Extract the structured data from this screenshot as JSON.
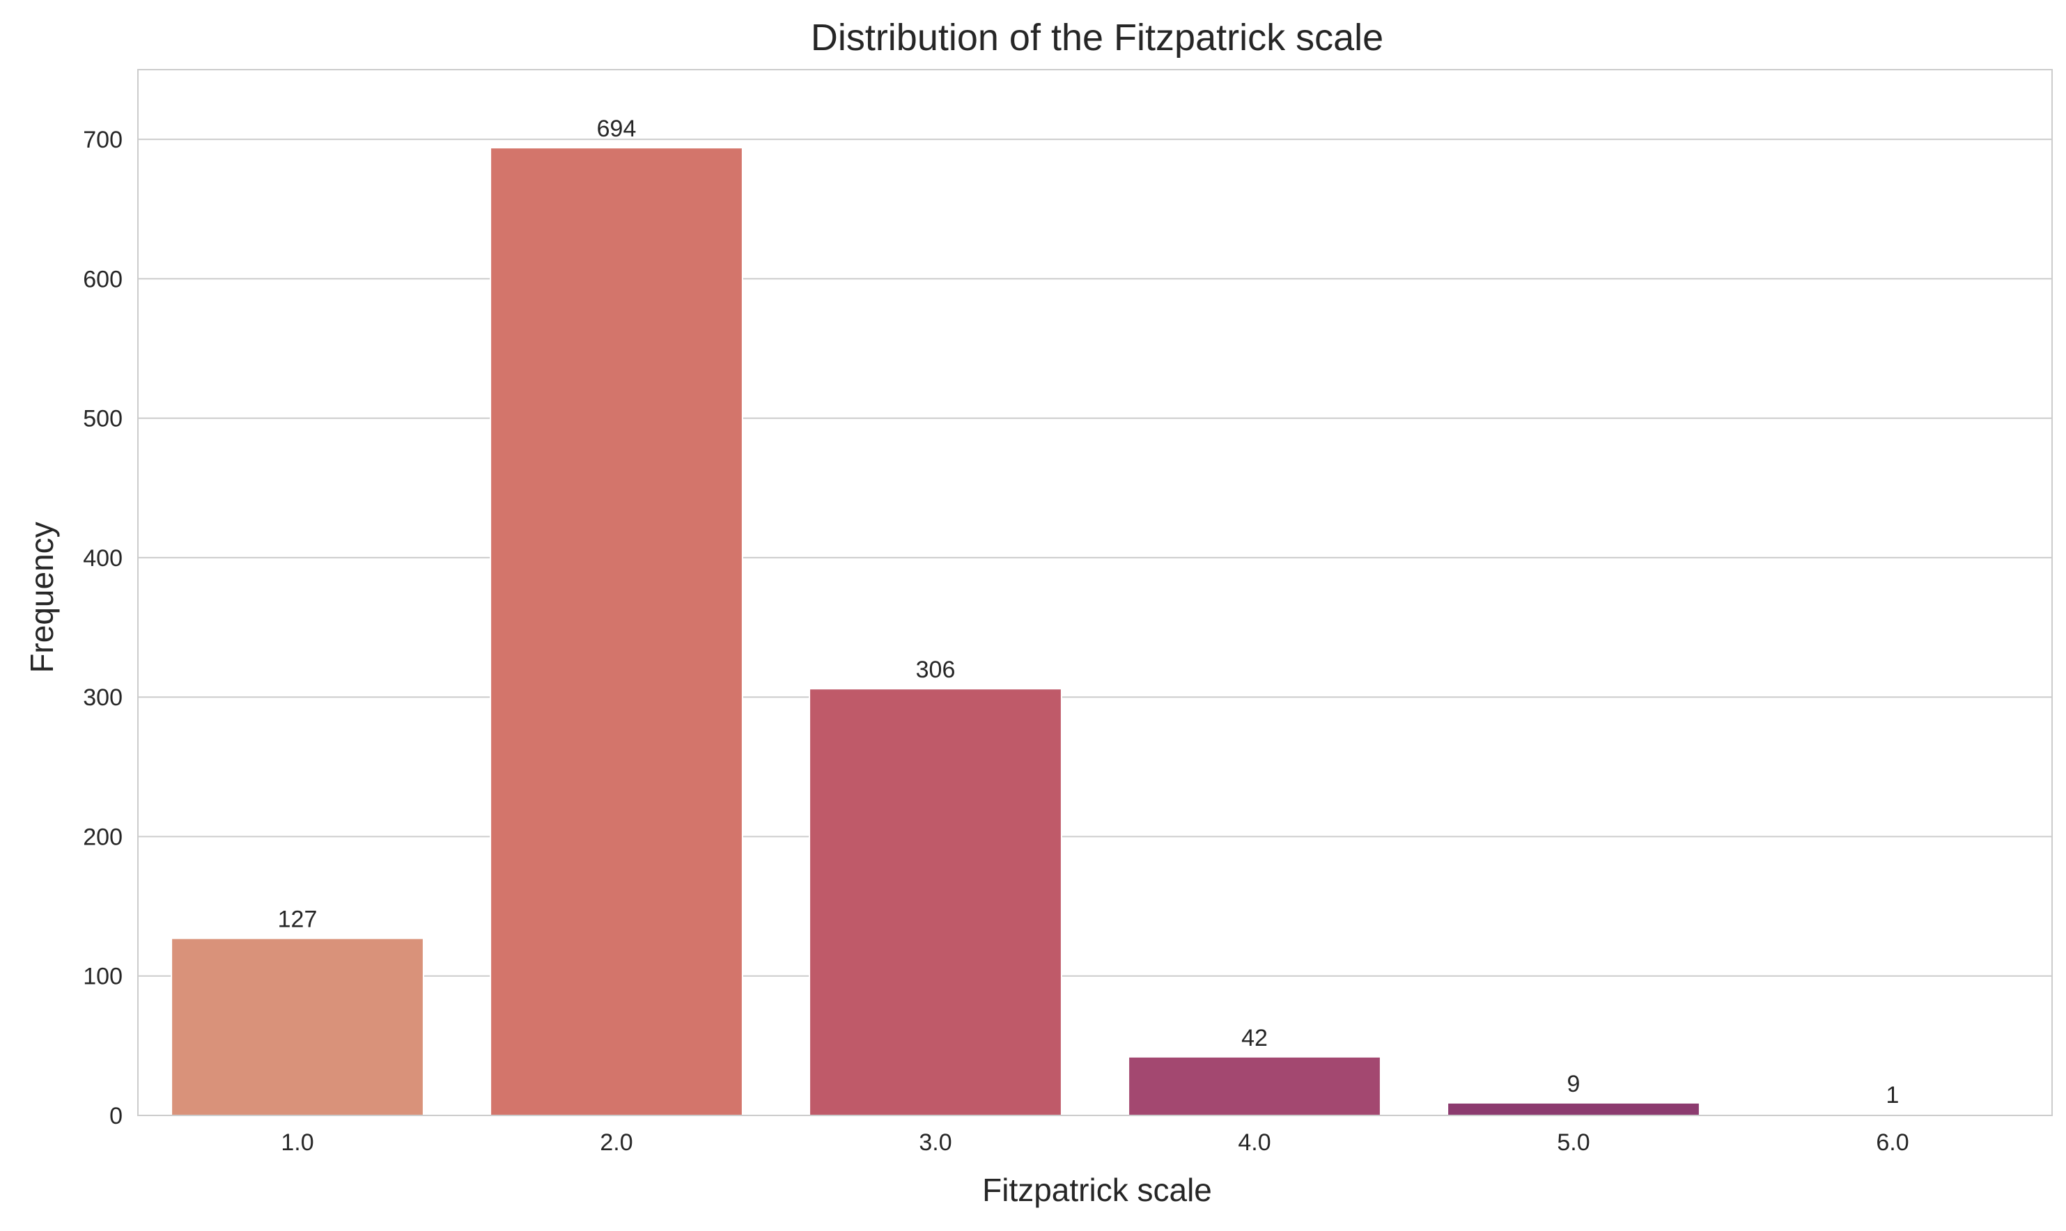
{
  "chart_data": {
    "type": "bar",
    "title": "Distribution of the Fitzpatrick scale",
    "xlabel": "Fitzpatrick scale",
    "ylabel": "Frequency",
    "categories": [
      "1.0",
      "2.0",
      "3.0",
      "4.0",
      "5.0",
      "6.0"
    ],
    "values": [
      127,
      694,
      306,
      42,
      9,
      1
    ],
    "value_labels": [
      "127",
      "694",
      "306",
      "42",
      "9",
      "1"
    ],
    "ylim": [
      0,
      750
    ],
    "yticks": [
      0,
      100,
      200,
      300,
      400,
      500,
      600,
      700
    ],
    "ytick_labels": [
      "0",
      "100",
      "200",
      "300",
      "400",
      "500",
      "600",
      "700"
    ],
    "grid": "horizontal",
    "legend": "none",
    "colors": [
      "#d9927a",
      "#d3756b",
      "#bf5a69",
      "#a34870",
      "#8c3b6f",
      "#5e2a5e"
    ],
    "background": "#ffffff",
    "grid_color": "#cccccc",
    "spine_color": "#cccccc"
  }
}
